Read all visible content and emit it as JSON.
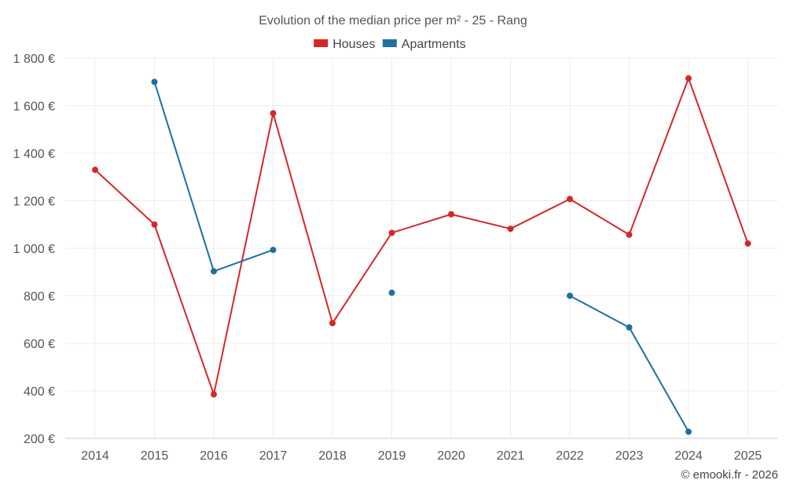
{
  "chart_data": {
    "type": "line",
    "title": "Evolution of the median price per m² - 25 - Rang",
    "categories": [
      "2014",
      "2015",
      "2016",
      "2017",
      "2018",
      "2019",
      "2020",
      "2021",
      "2022",
      "2023",
      "2024",
      "2025"
    ],
    "series": [
      {
        "name": "Houses",
        "color": "#d62728",
        "values": [
          1330,
          1100,
          385,
          1568,
          685,
          1065,
          1143,
          1082,
          1207,
          1057,
          1715,
          1020
        ]
      },
      {
        "name": "Apartments",
        "color": "#1f6fa0",
        "values": [
          null,
          1700,
          903,
          993,
          null,
          813,
          null,
          null,
          800,
          667,
          228,
          null
        ]
      }
    ],
    "ylim": [
      200,
      1800
    ],
    "yticks": [
      200,
      400,
      600,
      800,
      1000,
      1200,
      1400,
      1600,
      1800
    ],
    "ytick_labels": [
      "200 €",
      "400 €",
      "600 €",
      "800 €",
      "1 000 €",
      "1 200 €",
      "1 400 €",
      "1 600 €",
      "1 800 €"
    ],
    "legend_position": "top-center",
    "grid": true,
    "xlabel": "",
    "ylabel": ""
  },
  "credit": "© emooki.fr - 2026"
}
